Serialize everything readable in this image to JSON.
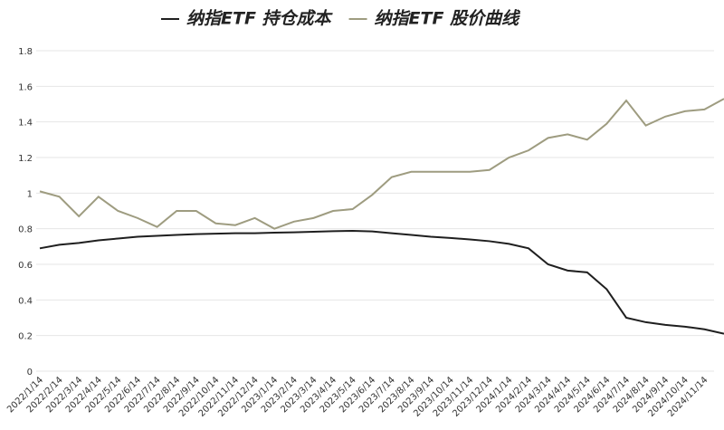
{
  "chart_data": {
    "type": "line",
    "categories": [
      "2022/1/14",
      "2022/2/14",
      "2022/3/14",
      "2022/4/14",
      "2022/5/14",
      "2022/6/14",
      "2022/7/14",
      "2022/8/14",
      "2022/9/14",
      "2022/10/14",
      "2022/11/14",
      "2022/12/14",
      "2023/1/14",
      "2023/2/14",
      "2023/3/14",
      "2023/4/14",
      "2023/5/14",
      "2023/6/14",
      "2023/7/14",
      "2023/8/14",
      "2023/9/14",
      "2023/10/14",
      "2023/11/14",
      "2023/12/14",
      "2024/1/14",
      "2024/2/14",
      "2024/3/14",
      "2024/4/14",
      "2024/5/14",
      "2024/6/14",
      "2024/7/14",
      "2024/8/14",
      "2024/9/14",
      "2024/10/14",
      "2024/11/14",
      null
    ],
    "series": [
      {
        "name": "纳指ETF 持仓成本",
        "color": "#1f1f1f",
        "values": [
          0.69,
          0.71,
          0.72,
          0.735,
          0.745,
          0.755,
          0.76,
          0.765,
          0.77,
          0.772,
          0.775,
          0.775,
          0.778,
          0.78,
          0.783,
          0.786,
          0.788,
          0.785,
          0.775,
          0.765,
          0.755,
          0.748,
          0.74,
          0.73,
          0.715,
          0.69,
          0.6,
          0.565,
          0.555,
          0.46,
          0.3,
          0.275,
          0.26,
          0.25,
          0.235,
          0.21
        ]
      },
      {
        "name": "纳指ETF 股价曲线",
        "color": "#9e9c80",
        "values": [
          1.01,
          0.98,
          0.87,
          0.98,
          0.9,
          0.86,
          0.81,
          0.9,
          0.9,
          0.83,
          0.82,
          0.86,
          0.8,
          0.84,
          0.86,
          0.9,
          0.91,
          0.99,
          1.09,
          1.12,
          1.12,
          1.12,
          1.12,
          1.13,
          1.2,
          1.24,
          1.31,
          1.33,
          1.3,
          1.39,
          1.52,
          1.38,
          1.43,
          1.46,
          1.47,
          1.53
        ]
      }
    ],
    "ylim": [
      0,
      1.8
    ],
    "yticks": [
      0,
      0.2,
      0.4,
      0.6,
      0.8,
      1,
      1.2,
      1.4,
      1.6,
      1.8
    ],
    "grid": true
  }
}
